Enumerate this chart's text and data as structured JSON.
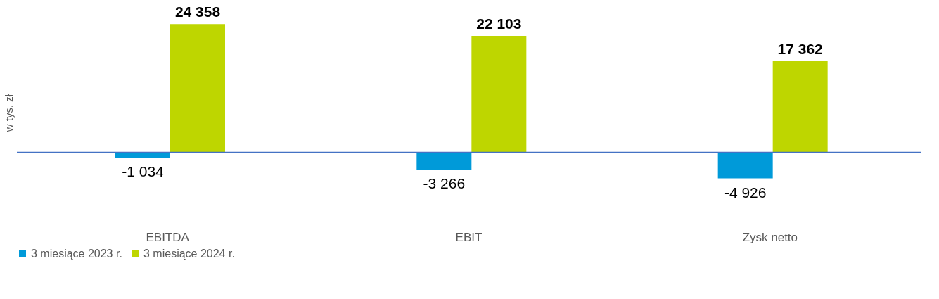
{
  "chart_data": {
    "type": "bar",
    "ylabel": "w tys. zł",
    "categories": [
      "EBITDA",
      "EBIT",
      "Zysk netto"
    ],
    "series": [
      {
        "name": "3 miesiące 2023 r.",
        "color": "#009ad9",
        "values": [
          -1034,
          -3266,
          -4926
        ],
        "value_labels": [
          "-1 034",
          "-3 266",
          "-4 926"
        ]
      },
      {
        "name": "3 miesiące 2024 r.",
        "color": "#bed600",
        "values": [
          24358,
          22103,
          17362
        ],
        "value_labels": [
          "24 358",
          "22 103",
          "17 362"
        ]
      }
    ],
    "ref_lines": [
      {
        "axis": "y",
        "value": 0,
        "color": "#4472c4"
      }
    ],
    "legend": "bottom",
    "grid": false
  }
}
